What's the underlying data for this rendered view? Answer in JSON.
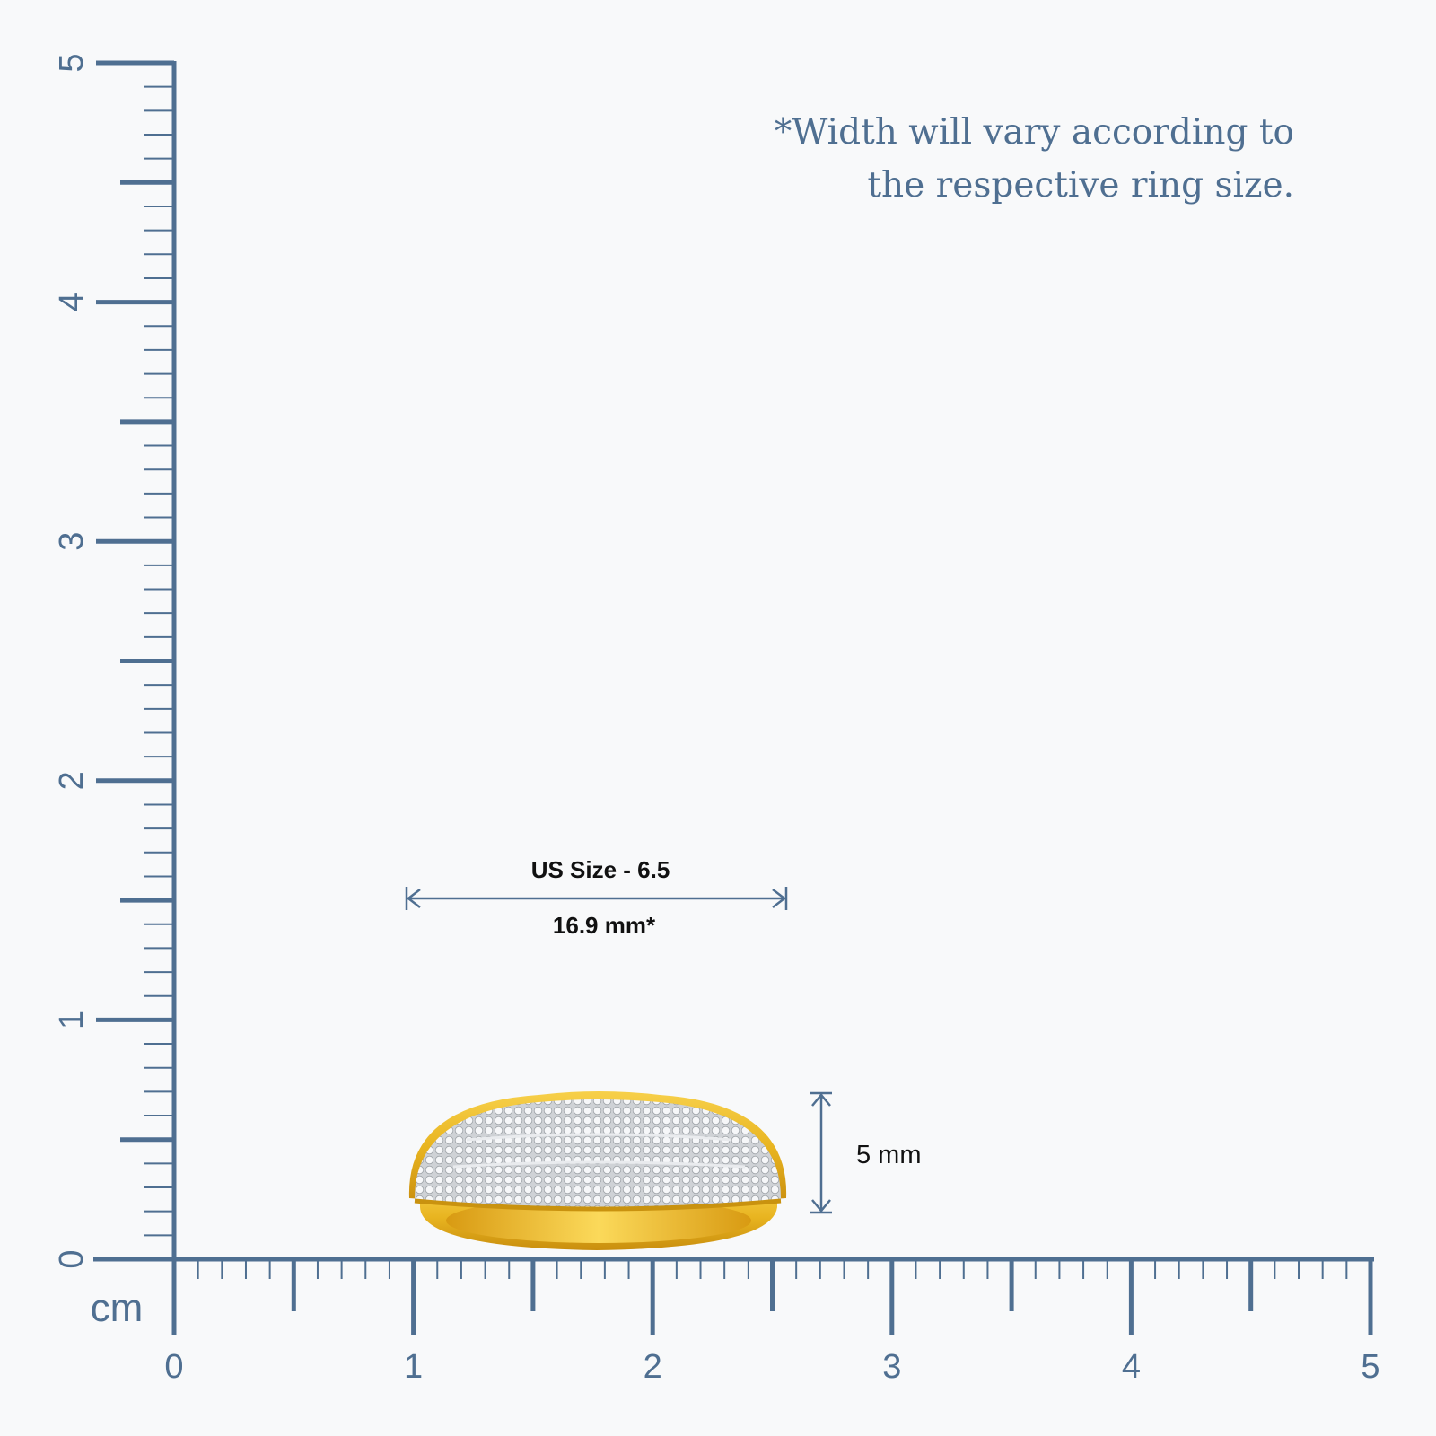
{
  "note": {
    "lines": [
      "*Width will vary according to",
      "the respective ring size."
    ]
  },
  "ruler": {
    "unit": "cm",
    "x_labels": [
      "0",
      "1",
      "2",
      "3",
      "4",
      "5"
    ],
    "y_labels": [
      "0",
      "1",
      "2",
      "3",
      "4",
      "5"
    ]
  },
  "dimensions": {
    "size_label": "US Size - 6.5",
    "diameter": "16.9 mm*",
    "band_width": "5 mm"
  }
}
